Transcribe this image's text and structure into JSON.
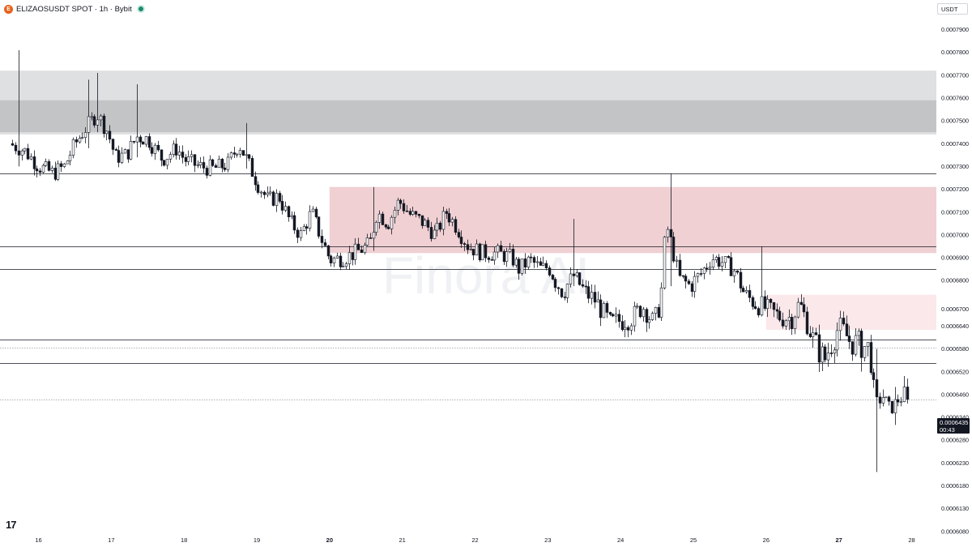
{
  "header": {
    "title": "ELIZAOSUSDT SPOT · 1h · Bybit",
    "coin_icon": "eliza-coin-icon",
    "status_icon": "live-status-dot-icon"
  },
  "currency": "USDT",
  "last_price": {
    "value": "0.0006435",
    "countdown": "00:43"
  },
  "watermark": "Finora AI",
  "logo_icon": "tradingview-logo-icon",
  "logo_text": "17",
  "colors": {
    "candle_body": "#ffffff",
    "candle_border": "#131722",
    "supply_zone_light": "#dfe0e2",
    "supply_zone_dark": "#c3c4c6",
    "red_zone": "#f0d0d3",
    "red_zone_light": "#fbe8ea",
    "level_line": "#131722",
    "last_price_line": "#9598a1"
  },
  "chart_data": {
    "type": "candlestick",
    "interval": "1h",
    "x_labels": [
      "16",
      "17",
      "18",
      "19",
      "20",
      "21",
      "22",
      "23",
      "24",
      "25",
      "26",
      "27",
      "28"
    ],
    "x_bold": [
      "20",
      "27"
    ],
    "y_ticks": [
      "0.0007900",
      "0.0007800",
      "0.0007700",
      "0.0007600",
      "0.0007500",
      "0.0007400",
      "0.0007300",
      "0.0007200",
      "0.0007100",
      "0.0007000",
      "0.0006900",
      "0.0006800",
      "0.0006700",
      "0.0006640",
      "0.0006580",
      "0.0006520",
      "0.0006460",
      "0.0006340",
      "0.0006280",
      "0.0006230",
      "0.0006180",
      "0.0006130",
      "0.0006080"
    ],
    "zones": [
      {
        "name": "supply-zone-outer",
        "from": 0.000744,
        "to": 0.000772,
        "color": "#dfe0e2",
        "x_start": "15"
      },
      {
        "name": "supply-zone-inner",
        "from": 0.000745,
        "to": 0.000759,
        "color": "#c3c4c6",
        "x_start": "15"
      },
      {
        "name": "red-zone-large",
        "from": 0.000692,
        "to": 0.000721,
        "color": "#f0d0d3",
        "x_start": "20"
      },
      {
        "name": "red-zone-small",
        "from": 0.000663,
        "to": 0.000675,
        "color": "#fbe8ea",
        "x_start": "26"
      }
    ],
    "levels": [
      {
        "name": "level-1",
        "price": 0.000727,
        "style": "solid"
      },
      {
        "name": "level-2",
        "price": 0.000695,
        "style": "solid"
      },
      {
        "name": "level-3",
        "price": 0.000685,
        "style": "solid"
      },
      {
        "name": "level-4",
        "price": 0.0006605,
        "style": "solid"
      },
      {
        "name": "level-5",
        "price": 0.00065425,
        "style": "solid"
      },
      {
        "name": "level-6",
        "price": 0.0006583,
        "style": "dotted"
      },
      {
        "name": "last-price-line",
        "price": 0.0006435,
        "style": "dotted"
      }
    ],
    "path": [
      {
        "x": 15.6,
        "y": 0.00074
      },
      {
        "x": 15.8,
        "y": 0.000737
      },
      {
        "x": 16.0,
        "y": 0.00073
      },
      {
        "x": 16.2,
        "y": 0.000727
      },
      {
        "x": 16.35,
        "y": 0.00073
      },
      {
        "x": 16.5,
        "y": 0.00074
      },
      {
        "x": 16.65,
        "y": 0.000747
      },
      {
        "x": 16.8,
        "y": 0.000753
      },
      {
        "x": 16.95,
        "y": 0.000745
      },
      {
        "x": 17.05,
        "y": 0.000734
      },
      {
        "x": 17.2,
        "y": 0.000735
      },
      {
        "x": 17.35,
        "y": 0.000743
      },
      {
        "x": 17.5,
        "y": 0.000742
      },
      {
        "x": 17.7,
        "y": 0.000733
      },
      {
        "x": 17.9,
        "y": 0.000738
      },
      {
        "x": 18.0,
        "y": 0.000733
      },
      {
        "x": 18.2,
        "y": 0.00073
      },
      {
        "x": 18.4,
        "y": 0.000729
      },
      {
        "x": 18.6,
        "y": 0.000731
      },
      {
        "x": 18.75,
        "y": 0.00074
      },
      {
        "x": 18.9,
        "y": 0.00073
      },
      {
        "x": 19.0,
        "y": 0.000723
      },
      {
        "x": 19.15,
        "y": 0.000715
      },
      {
        "x": 19.3,
        "y": 0.000717
      },
      {
        "x": 19.45,
        "y": 0.000706
      },
      {
        "x": 19.6,
        "y": 0.0007
      },
      {
        "x": 19.75,
        "y": 0.00071
      },
      {
        "x": 19.9,
        "y": 0.000697
      },
      {
        "x": 20.0,
        "y": 0.000689
      },
      {
        "x": 20.2,
        "y": 0.00069
      },
      {
        "x": 20.4,
        "y": 0.000693
      },
      {
        "x": 20.55,
        "y": 0.000696
      },
      {
        "x": 20.65,
        "y": 0.00071
      },
      {
        "x": 20.8,
        "y": 0.000705
      },
      {
        "x": 20.95,
        "y": 0.000715
      },
      {
        "x": 21.1,
        "y": 0.000709
      },
      {
        "x": 21.3,
        "y": 0.000705
      },
      {
        "x": 21.45,
        "y": 0.0007
      },
      {
        "x": 21.6,
        "y": 0.00071
      },
      {
        "x": 21.75,
        "y": 0.000703
      },
      {
        "x": 21.9,
        "y": 0.000695
      },
      {
        "x": 22.1,
        "y": 0.000692
      },
      {
        "x": 22.3,
        "y": 0.000692
      },
      {
        "x": 22.5,
        "y": 0.00069
      },
      {
        "x": 22.6,
        "y": 0.000685
      },
      {
        "x": 22.75,
        "y": 0.000689
      },
      {
        "x": 22.9,
        "y": 0.000685
      },
      {
        "x": 23.0,
        "y": 0.000686
      },
      {
        "x": 23.1,
        "y": 0.00068
      },
      {
        "x": 23.2,
        "y": 0.000676
      },
      {
        "x": 23.35,
        "y": 0.000682
      },
      {
        "x": 23.5,
        "y": 0.000676
      },
      {
        "x": 23.65,
        "y": 0.000673
      },
      {
        "x": 23.85,
        "y": 0.000665
      },
      {
        "x": 24.0,
        "y": 0.000666
      },
      {
        "x": 24.15,
        "y": 0.000667
      },
      {
        "x": 24.3,
        "y": 0.000671
      },
      {
        "x": 24.45,
        "y": 0.000665
      },
      {
        "x": 24.55,
        "y": 0.000673
      },
      {
        "x": 24.62,
        "y": 0.000705
      },
      {
        "x": 24.7,
        "y": 0.000695
      },
      {
        "x": 24.8,
        "y": 0.000681
      },
      {
        "x": 24.95,
        "y": 0.000678
      },
      {
        "x": 25.1,
        "y": 0.000683
      },
      {
        "x": 25.25,
        "y": 0.00069
      },
      {
        "x": 25.4,
        "y": 0.000688
      },
      {
        "x": 25.55,
        "y": 0.000685
      },
      {
        "x": 25.7,
        "y": 0.000675
      },
      {
        "x": 25.85,
        "y": 0.000672
      },
      {
        "x": 26.0,
        "y": 0.00067
      },
      {
        "x": 26.2,
        "y": 0.000667
      },
      {
        "x": 26.35,
        "y": 0.000667
      },
      {
        "x": 26.45,
        "y": 0.000672
      },
      {
        "x": 26.55,
        "y": 0.000666
      },
      {
        "x": 26.65,
        "y": 0.00066
      },
      {
        "x": 26.8,
        "y": 0.000655
      },
      {
        "x": 26.9,
        "y": 0.00066
      },
      {
        "x": 27.0,
        "y": 0.000664
      },
      {
        "x": 27.15,
        "y": 0.00066
      },
      {
        "x": 27.3,
        "y": 0.000659
      },
      {
        "x": 27.42,
        "y": 0.000658
      },
      {
        "x": 27.5,
        "y": 0.000641
      },
      {
        "x": 27.6,
        "y": 0.000645
      },
      {
        "x": 27.7,
        "y": 0.000638
      },
      {
        "x": 27.8,
        "y": 0.000643
      },
      {
        "x": 27.9,
        "y": 0.000645
      },
      {
        "x": 27.95,
        "y": 0.0006435
      }
    ],
    "spikes": [
      {
        "x": 15.72,
        "high": 0.000781,
        "low": 0.00073
      },
      {
        "x": 16.68,
        "high": 0.000768,
        "low": 0.000738
      },
      {
        "x": 16.82,
        "high": 0.000771,
        "low": 0.000745
      },
      {
        "x": 17.35,
        "high": 0.000766,
        "low": 0.000734
      },
      {
        "x": 18.85,
        "high": 0.000749,
        "low": 0.000729
      },
      {
        "x": 20.6,
        "high": 0.000721,
        "low": 0.000693
      },
      {
        "x": 23.35,
        "high": 0.000707,
        "low": 0.000678
      },
      {
        "x": 24.7,
        "high": 0.000727,
        "low": 0.000678
      },
      {
        "x": 25.95,
        "high": 0.000695,
        "low": 0.000673
      },
      {
        "x": 27.3,
        "high": 0.000663,
        "low": 0.000652
      },
      {
        "x": 27.5,
        "high": 0.000658,
        "low": 0.000621
      },
      {
        "x": 27.75,
        "high": 0.000648,
        "low": 0.000632
      }
    ]
  }
}
